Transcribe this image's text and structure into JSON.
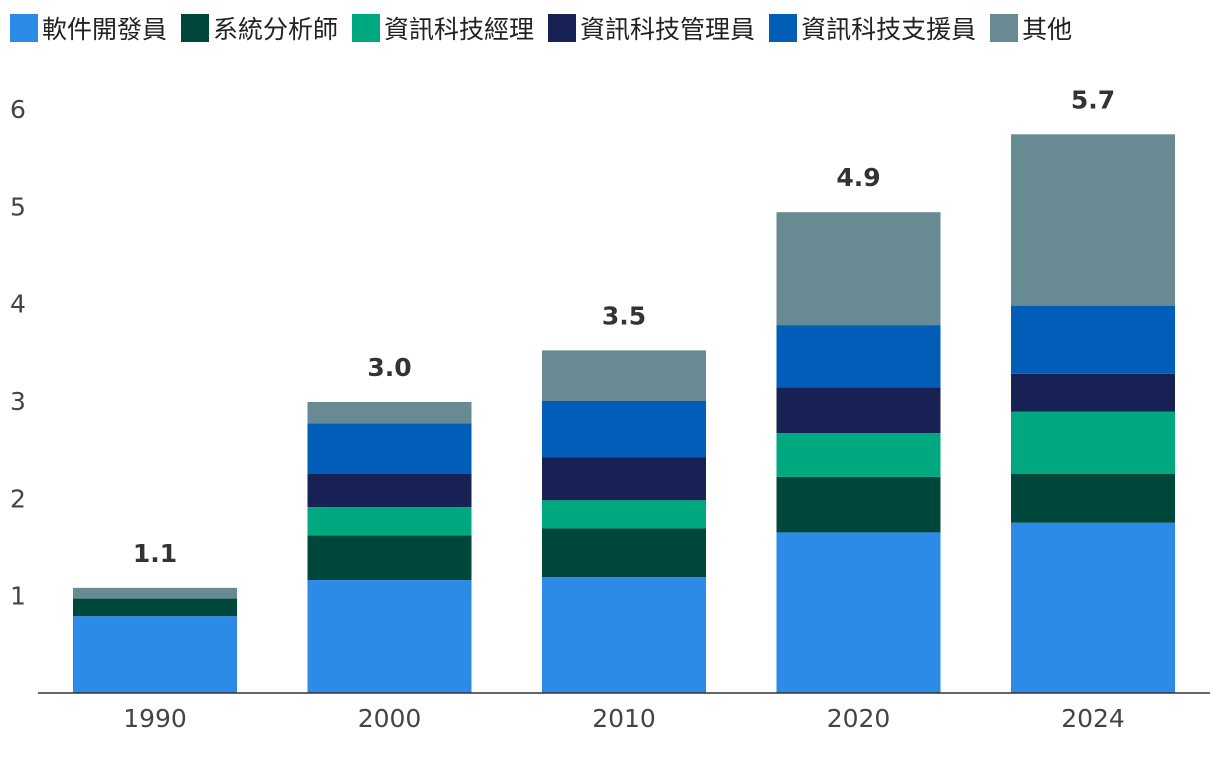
{
  "chart_data": {
    "type": "bar",
    "stacked": true,
    "categories": [
      "1990",
      "2000",
      "2010",
      "2020",
      "2024"
    ],
    "ylim": [
      0,
      6
    ],
    "yticks": [
      1,
      2,
      3,
      4,
      5,
      6
    ],
    "series": [
      {
        "name": "軟件開發員",
        "color": "#2b8be6",
        "values": [
          0.79,
          1.16,
          1.19,
          1.65,
          1.75
        ]
      },
      {
        "name": "系統分析師",
        "color": "#00473b",
        "values": [
          0.18,
          0.46,
          0.5,
          0.57,
          0.5
        ]
      },
      {
        "name": "資訊科技經理",
        "color": "#00a880",
        "values": [
          0.0,
          0.29,
          0.29,
          0.45,
          0.64
        ]
      },
      {
        "name": "資訊科技管理員",
        "color": "#172154",
        "values": [
          0.0,
          0.34,
          0.44,
          0.47,
          0.39
        ]
      },
      {
        "name": "資訊科技支援員",
        "color": "#005db8",
        "values": [
          0.0,
          0.52,
          0.58,
          0.64,
          0.7
        ]
      },
      {
        "name": "其他",
        "color": "#688a93",
        "values": [
          0.11,
          0.22,
          0.52,
          1.16,
          1.76
        ]
      }
    ],
    "totals": [
      "1.1",
      "3.0",
      "3.5",
      "4.9",
      "5.7"
    ],
    "grid": false,
    "legend_position": "top"
  }
}
